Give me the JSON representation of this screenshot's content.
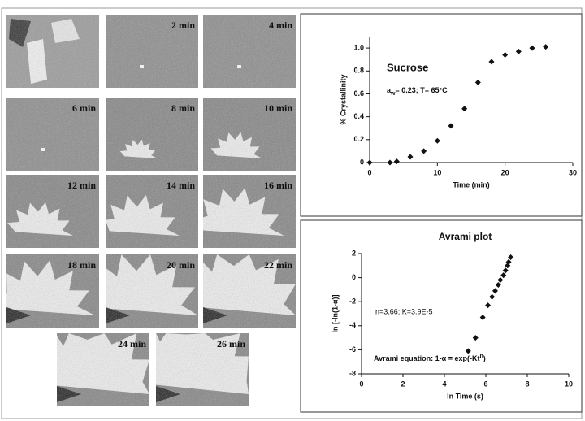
{
  "micrographs": {
    "labels": [
      "2 min",
      "4 min",
      "6 min",
      "8 min",
      "10 min",
      "12 min",
      "14 min",
      "16 min",
      "18 min",
      "20 min",
      "22 min",
      "24 min",
      "26 min"
    ]
  },
  "chart_data": [
    {
      "type": "scatter",
      "annotation": "Sucrose",
      "condition": [
        "a",
        "w",
        "= 0.23; T= 65°C"
      ],
      "xlabel": "Time (min)",
      "ylabel": "% Crystallinity",
      "color": "#111111",
      "x": [
        0,
        3,
        4,
        6,
        8,
        10,
        12,
        14,
        16,
        18,
        20,
        22,
        24,
        26
      ],
      "values": [
        0,
        0,
        0.01,
        0.05,
        0.1,
        0.19,
        0.32,
        0.47,
        0.7,
        0.88,
        0.94,
        0.97,
        1.0,
        1.01
      ],
      "xlim": [
        0,
        30
      ],
      "xticks": [
        0,
        10,
        20,
        30
      ],
      "ylim": [
        0,
        1.1
      ],
      "yticks": [
        0,
        0.2,
        0.4,
        0.6,
        0.8,
        {
          "value": 1,
          "label": "1.0"
        }
      ]
    },
    {
      "type": "scatter",
      "title": "Avrami plot",
      "annotation": "n=3.66; K=3.9E-5",
      "condition": [
        "Avrami equation: 1-α = exp(-Kt",
        "n",
        ")"
      ],
      "xlabel": "ln Time (s)",
      "ylabel": "ln [-ln(1-α)]",
      "color": "#111111",
      "x": [
        5.15,
        5.5,
        5.85,
        6.1,
        6.3,
        6.45,
        6.6,
        6.7,
        6.85,
        6.95,
        7.05,
        7.1,
        7.2
      ],
      "values": [
        -6.1,
        -5.0,
        -3.3,
        -2.3,
        -1.6,
        -1.1,
        -0.6,
        -0.2,
        0.2,
        0.6,
        1.0,
        1.3,
        1.7
      ],
      "xlim": [
        0,
        10
      ],
      "xticks": [
        0,
        2,
        4,
        6,
        8,
        10
      ],
      "ylim": [
        -8,
        2
      ],
      "yticks": [
        -8,
        -6,
        -4,
        -2,
        0,
        2
      ]
    }
  ]
}
